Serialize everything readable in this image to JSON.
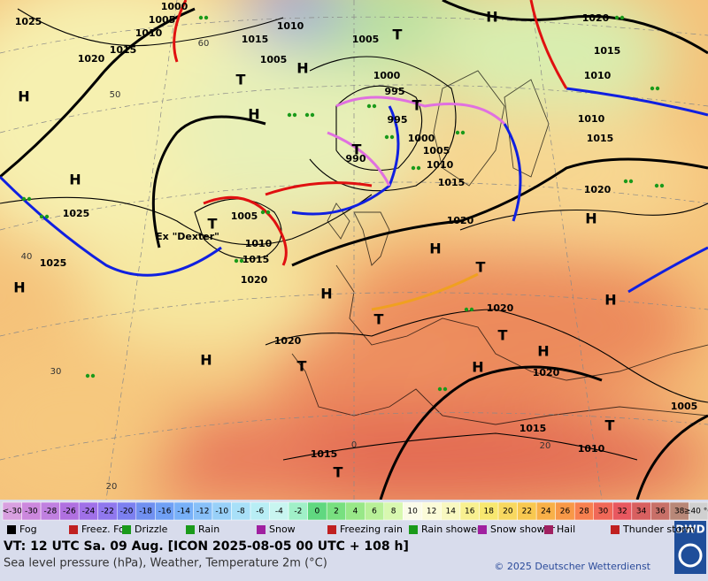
{
  "map": {
    "pressure_labels": [
      "1025",
      "1005",
      "1000",
      "1010",
      "1020",
      "1015",
      "1010",
      "1015",
      "1005",
      "1005",
      "1000",
      "995",
      "995",
      "990",
      "1000",
      "1005",
      "1010",
      "1015",
      "1020",
      "1020",
      "1015",
      "1010",
      "1010",
      "1015",
      "1020",
      "1025",
      "1025",
      "1005",
      "1010",
      "1015",
      "1020",
      "1020",
      "1020",
      "1020",
      "1005",
      "1015",
      "1010",
      "1015"
    ],
    "highs": [
      "H",
      "H",
      "H",
      "H",
      "H",
      "H",
      "H",
      "H",
      "H",
      "H",
      "H",
      "H",
      "H"
    ],
    "lows": [
      "T",
      "T",
      "T",
      "T",
      "T",
      "T",
      "T",
      "T",
      "T",
      "T",
      "T"
    ],
    "temp_labels": [
      "60",
      "50",
      "40",
      "30",
      "20",
      "20",
      "0"
    ],
    "annotation": "Ex \"Dexter\""
  },
  "scale": {
    "labels": [
      "<-30",
      "-30",
      "-28",
      "-26",
      "-24",
      "-22",
      "-20",
      "-18",
      "-16",
      "-14",
      "-12",
      "-10",
      "-8",
      "-6",
      "-4",
      "-2",
      "0",
      "2",
      "4",
      "6",
      "8",
      "10",
      "12",
      "14",
      "16",
      "18",
      "20",
      "22",
      "24",
      "26",
      "28",
      "30",
      "32",
      "34",
      "36",
      "38",
      "≥40 °C"
    ],
    "colors": [
      "#d9a0e0",
      "#cc88dd",
      "#c080e0",
      "#b070e0",
      "#a070e8",
      "#9078ee",
      "#7c80f0",
      "#7090f0",
      "#70a0f5",
      "#78b0f8",
      "#88c0f8",
      "#98d0f8",
      "#a8e0f8",
      "#b8eef5",
      "#c8f5f0",
      "#a0f0c8",
      "#60d880",
      "#78e080",
      "#98e888",
      "#b8f098",
      "#d8f8b0",
      "#fbfbe8",
      "#fbfbd8",
      "#f8f8c0",
      "#f8f090",
      "#f8e870",
      "#f8d860",
      "#f8c850",
      "#f8b048",
      "#f89848",
      "#f88050",
      "#f06858",
      "#e85860",
      "#d86060",
      "#c87068",
      "#b88878",
      "#d0d0d0"
    ]
  },
  "legend": [
    "Fog",
    "Freez. Fog",
    "Drizzle",
    "Rain",
    "Snow",
    "Freezing rain",
    "Rain shower",
    "Snow shower",
    "Hail",
    "Thunder storm"
  ],
  "footer": {
    "valid_time": "VT: 12 UTC Sa.  09 Aug. [ICON 2025-08-05  00 UTC + 108 h]",
    "description": "Sea level pressure (hPa), Weather, Temperature 2m (°C)",
    "copyright": "© 2025 Deutscher Wetterdienst",
    "logo": "DWD"
  }
}
